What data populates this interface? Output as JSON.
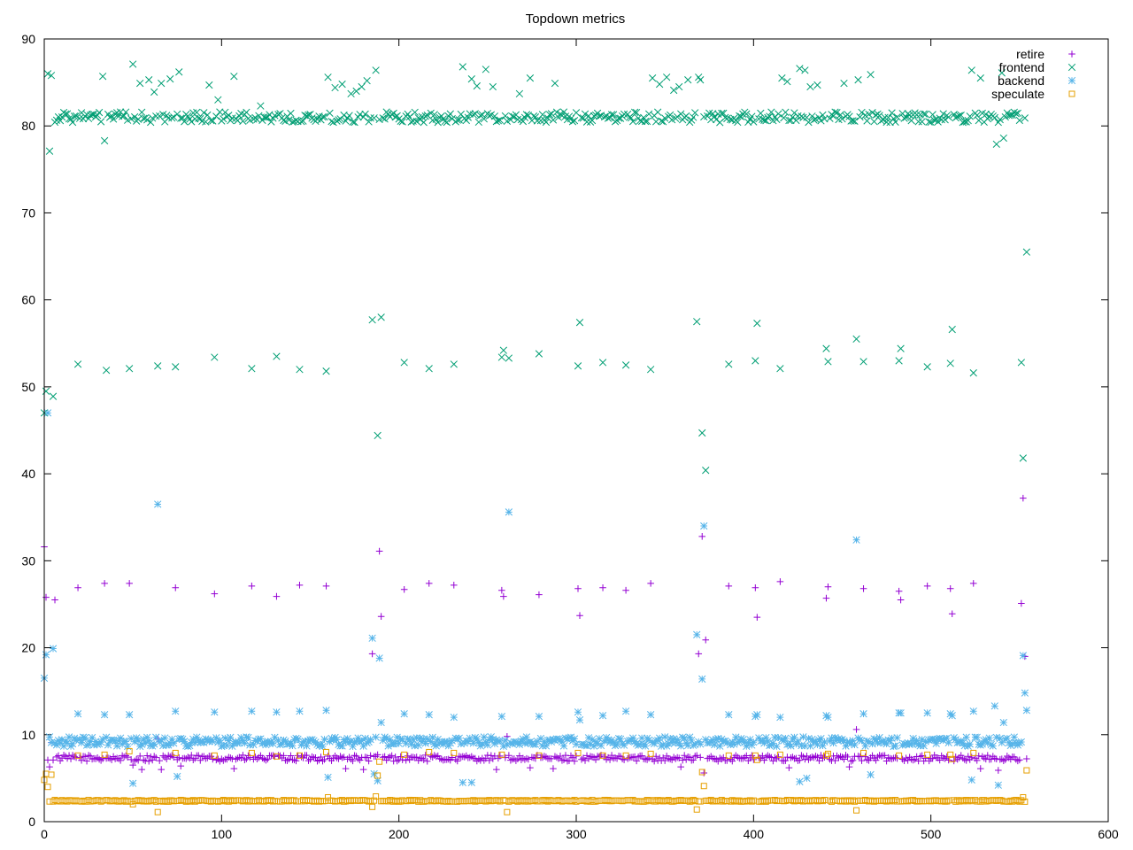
{
  "chart_data": {
    "type": "scatter",
    "title": "Topdown metrics",
    "xlabel": "",
    "ylabel": "",
    "xlim": [
      0,
      600
    ],
    "ylim": [
      0,
      90
    ],
    "xticks": [
      0,
      100,
      200,
      300,
      400,
      500,
      600
    ],
    "yticks": [
      0,
      10,
      20,
      30,
      40,
      50,
      60,
      70,
      80,
      90
    ],
    "grid": false,
    "legend_position": "top-right",
    "x_count": 555,
    "series": [
      {
        "name": "retire",
        "marker": "plus",
        "color": "#9400d3",
        "baseline": 7.3,
        "jitter": 0.35,
        "outliers": [
          [
            0,
            31.6
          ],
          [
            1,
            25.8
          ],
          [
            3,
            6.3
          ],
          [
            4,
            9.1
          ],
          [
            6,
            25.5
          ],
          [
            19,
            26.9
          ],
          [
            34,
            27.4
          ],
          [
            48,
            27.4
          ],
          [
            50,
            6.5
          ],
          [
            55,
            6.0
          ],
          [
            64,
            9.5
          ],
          [
            66,
            6.0
          ],
          [
            74,
            26.9
          ],
          [
            77,
            6.4
          ],
          [
            96,
            26.2
          ],
          [
            107,
            6.1
          ],
          [
            117,
            27.1
          ],
          [
            131,
            25.9
          ],
          [
            144,
            27.2
          ],
          [
            159,
            27.1
          ],
          [
            170,
            6.1
          ],
          [
            180,
            6.0
          ],
          [
            185,
            19.3
          ],
          [
            188,
            7.7
          ],
          [
            189,
            31.1
          ],
          [
            190,
            23.6
          ],
          [
            203,
            26.7
          ],
          [
            217,
            27.4
          ],
          [
            231,
            27.2
          ],
          [
            255,
            6.0
          ],
          [
            258,
            26.6
          ],
          [
            259,
            25.9
          ],
          [
            261,
            9.8
          ],
          [
            274,
            6.2
          ],
          [
            279,
            26.1
          ],
          [
            287,
            6.1
          ],
          [
            301,
            26.8
          ],
          [
            302,
            23.7
          ],
          [
            315,
            26.9
          ],
          [
            328,
            26.6
          ],
          [
            342,
            27.4
          ],
          [
            359,
            6.3
          ],
          [
            369,
            19.3
          ],
          [
            371,
            32.8
          ],
          [
            372,
            5.6
          ],
          [
            373,
            20.9
          ],
          [
            386,
            27.1
          ],
          [
            401,
            26.9
          ],
          [
            402,
            23.5
          ],
          [
            415,
            27.6
          ],
          [
            420,
            6.2
          ],
          [
            441,
            25.7
          ],
          [
            442,
            27.0
          ],
          [
            454,
            6.3
          ],
          [
            458,
            10.6
          ],
          [
            462,
            26.8
          ],
          [
            482,
            26.5
          ],
          [
            483,
            25.5
          ],
          [
            498,
            27.1
          ],
          [
            511,
            26.8
          ],
          [
            512,
            23.9
          ],
          [
            524,
            27.4
          ],
          [
            528,
            6.1
          ],
          [
            538,
            5.9
          ],
          [
            551,
            25.1
          ],
          [
            552,
            37.2
          ],
          [
            553,
            19.0
          ]
        ]
      },
      {
        "name": "frontend",
        "marker": "x",
        "color": "#009e73",
        "baseline": 81.0,
        "jitter": 0.6,
        "outliers": [
          [
            0,
            47.0
          ],
          [
            1,
            49.5
          ],
          [
            2,
            86.0
          ],
          [
            3,
            77.1
          ],
          [
            4,
            85.8
          ],
          [
            5,
            48.9
          ],
          [
            19,
            52.6
          ],
          [
            33,
            85.7
          ],
          [
            34,
            78.3
          ],
          [
            35,
            51.9
          ],
          [
            48,
            52.1
          ],
          [
            50,
            87.1
          ],
          [
            54,
            84.9
          ],
          [
            59,
            85.3
          ],
          [
            62,
            83.9
          ],
          [
            64,
            52.4
          ],
          [
            66,
            84.9
          ],
          [
            71,
            85.4
          ],
          [
            74,
            52.3
          ],
          [
            76,
            86.2
          ],
          [
            93,
            84.7
          ],
          [
            96,
            53.4
          ],
          [
            98,
            83.0
          ],
          [
            107,
            85.7
          ],
          [
            117,
            52.1
          ],
          [
            122,
            82.3
          ],
          [
            131,
            53.5
          ],
          [
            144,
            52.0
          ],
          [
            159,
            51.8
          ],
          [
            160,
            85.6
          ],
          [
            164,
            84.4
          ],
          [
            168,
            84.8
          ],
          [
            173,
            83.7
          ],
          [
            176,
            84.0
          ],
          [
            179,
            84.5
          ],
          [
            182,
            85.2
          ],
          [
            185,
            57.7
          ],
          [
            187,
            86.4
          ],
          [
            188,
            44.4
          ],
          [
            190,
            58.0
          ],
          [
            203,
            52.8
          ],
          [
            217,
            52.1
          ],
          [
            231,
            52.6
          ],
          [
            236,
            86.8
          ],
          [
            241,
            85.4
          ],
          [
            244,
            84.6
          ],
          [
            249,
            86.5
          ],
          [
            253,
            84.5
          ],
          [
            258,
            53.4
          ],
          [
            259,
            54.2
          ],
          [
            262,
            53.3
          ],
          [
            268,
            83.7
          ],
          [
            274,
            85.5
          ],
          [
            279,
            53.8
          ],
          [
            288,
            84.9
          ],
          [
            301,
            52.4
          ],
          [
            302,
            57.4
          ],
          [
            315,
            52.8
          ],
          [
            328,
            52.5
          ],
          [
            342,
            52.0
          ],
          [
            343,
            85.5
          ],
          [
            347,
            84.8
          ],
          [
            351,
            85.6
          ],
          [
            355,
            84.1
          ],
          [
            358,
            84.5
          ],
          [
            363,
            85.3
          ],
          [
            368,
            57.5
          ],
          [
            369,
            85.6
          ],
          [
            370,
            85.3
          ],
          [
            371,
            44.7
          ],
          [
            373,
            40.4
          ],
          [
            386,
            52.6
          ],
          [
            401,
            53.0
          ],
          [
            402,
            57.3
          ],
          [
            415,
            52.1
          ],
          [
            416,
            85.5
          ],
          [
            419,
            85.1
          ],
          [
            426,
            86.6
          ],
          [
            429,
            86.4
          ],
          [
            432,
            84.5
          ],
          [
            436,
            84.7
          ],
          [
            441,
            54.4
          ],
          [
            442,
            52.9
          ],
          [
            451,
            84.9
          ],
          [
            458,
            55.5
          ],
          [
            459,
            85.3
          ],
          [
            462,
            52.9
          ],
          [
            466,
            85.9
          ],
          [
            482,
            53.0
          ],
          [
            483,
            54.4
          ],
          [
            498,
            52.3
          ],
          [
            511,
            52.7
          ],
          [
            512,
            56.6
          ],
          [
            523,
            86.4
          ],
          [
            524,
            51.6
          ],
          [
            528,
            85.5
          ],
          [
            537,
            77.9
          ],
          [
            540,
            86.1
          ],
          [
            541,
            78.6
          ],
          [
            551,
            52.8
          ],
          [
            552,
            41.8
          ],
          [
            554,
            65.5
          ]
        ]
      },
      {
        "name": "backend",
        "marker": "star",
        "color": "#56b4e9",
        "baseline": 9.2,
        "jitter": 0.55,
        "outliers": [
          [
            0,
            16.5
          ],
          [
            1,
            19.2
          ],
          [
            2,
            47.0
          ],
          [
            5,
            19.9
          ],
          [
            19,
            12.4
          ],
          [
            34,
            12.3
          ],
          [
            48,
            12.3
          ],
          [
            50,
            4.4
          ],
          [
            64,
            36.5
          ],
          [
            74,
            12.7
          ],
          [
            75,
            5.2
          ],
          [
            96,
            12.6
          ],
          [
            117,
            12.7
          ],
          [
            131,
            12.6
          ],
          [
            144,
            12.7
          ],
          [
            159,
            12.8
          ],
          [
            160,
            5.1
          ],
          [
            185,
            21.1
          ],
          [
            186,
            5.5
          ],
          [
            188,
            4.7
          ],
          [
            189,
            18.8
          ],
          [
            190,
            11.4
          ],
          [
            203,
            12.4
          ],
          [
            217,
            12.3
          ],
          [
            231,
            12.0
          ],
          [
            236,
            4.5
          ],
          [
            241,
            4.5
          ],
          [
            258,
            12.1
          ],
          [
            262,
            35.6
          ],
          [
            279,
            12.1
          ],
          [
            301,
            12.6
          ],
          [
            302,
            11.7
          ],
          [
            315,
            12.2
          ],
          [
            328,
            12.7
          ],
          [
            342,
            12.3
          ],
          [
            368,
            21.5
          ],
          [
            371,
            16.4
          ],
          [
            372,
            34.0
          ],
          [
            386,
            12.3
          ],
          [
            401,
            12.1
          ],
          [
            402,
            12.3
          ],
          [
            415,
            12.0
          ],
          [
            426,
            4.6
          ],
          [
            430,
            5.0
          ],
          [
            441,
            12.2
          ],
          [
            442,
            12.0
          ],
          [
            458,
            32.4
          ],
          [
            462,
            12.4
          ],
          [
            466,
            5.4
          ],
          [
            482,
            12.5
          ],
          [
            483,
            12.5
          ],
          [
            498,
            12.5
          ],
          [
            511,
            12.4
          ],
          [
            512,
            12.2
          ],
          [
            523,
            4.8
          ],
          [
            524,
            12.7
          ],
          [
            536,
            13.3
          ],
          [
            538,
            4.2
          ],
          [
            541,
            11.4
          ],
          [
            552,
            19.1
          ],
          [
            553,
            14.8
          ],
          [
            554,
            12.8
          ]
        ]
      },
      {
        "name": "speculate",
        "marker": "square",
        "color": "#e69f00",
        "baseline": 2.4,
        "jitter": 0.1,
        "outliers": [
          [
            0,
            4.8
          ],
          [
            1,
            5.5
          ],
          [
            2,
            4.0
          ],
          [
            4,
            5.4
          ],
          [
            19,
            7.6
          ],
          [
            34,
            7.7
          ],
          [
            48,
            8.1
          ],
          [
            50,
            2.0
          ],
          [
            64,
            1.1
          ],
          [
            74,
            7.9
          ],
          [
            96,
            7.6
          ],
          [
            117,
            7.9
          ],
          [
            131,
            7.5
          ],
          [
            144,
            7.6
          ],
          [
            159,
            8.0
          ],
          [
            160,
            2.8
          ],
          [
            185,
            1.7
          ],
          [
            187,
            2.9
          ],
          [
            188,
            5.3
          ],
          [
            189,
            6.9
          ],
          [
            203,
            7.7
          ],
          [
            217,
            8.0
          ],
          [
            231,
            7.9
          ],
          [
            258,
            7.7
          ],
          [
            261,
            1.1
          ],
          [
            279,
            7.6
          ],
          [
            301,
            7.9
          ],
          [
            315,
            7.6
          ],
          [
            328,
            7.6
          ],
          [
            342,
            7.8
          ],
          [
            368,
            1.4
          ],
          [
            371,
            5.7
          ],
          [
            372,
            4.1
          ],
          [
            386,
            7.6
          ],
          [
            401,
            7.6
          ],
          [
            402,
            7.1
          ],
          [
            415,
            7.7
          ],
          [
            441,
            7.6
          ],
          [
            442,
            7.8
          ],
          [
            458,
            1.3
          ],
          [
            462,
            7.9
          ],
          [
            482,
            7.6
          ],
          [
            498,
            7.7
          ],
          [
            511,
            7.7
          ],
          [
            512,
            7.2
          ],
          [
            524,
            7.9
          ],
          [
            552,
            2.8
          ],
          [
            553,
            2.3
          ],
          [
            554,
            5.9
          ]
        ]
      }
    ]
  }
}
